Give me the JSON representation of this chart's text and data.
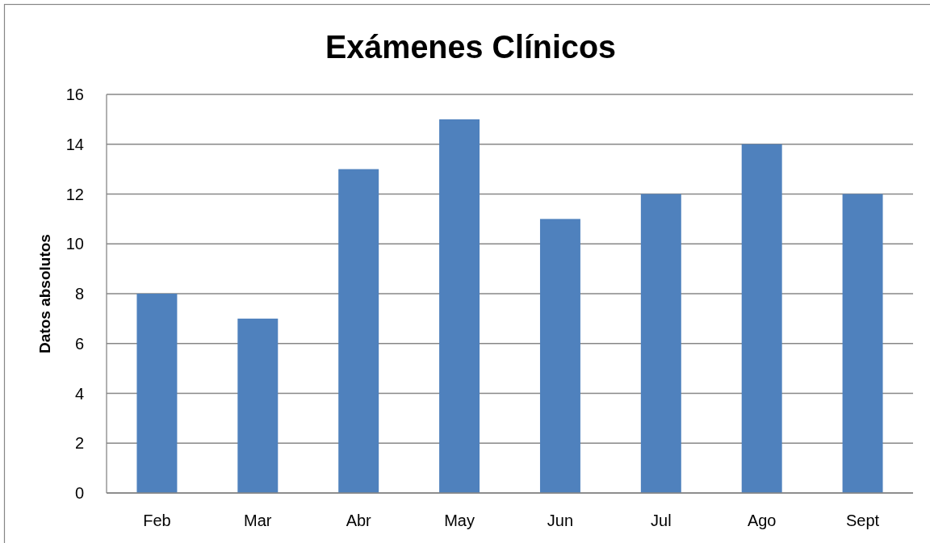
{
  "chart_data": {
    "type": "bar",
    "title": "Exámenes Clínicos",
    "ylabel": "Datos absolutos",
    "categories": [
      "Feb",
      "Mar",
      "Abr",
      "May",
      "Jun",
      "Jul",
      "Ago",
      "Sept"
    ],
    "values": [
      8,
      7,
      13,
      15,
      11,
      12,
      14,
      12
    ],
    "color": "#4f81bd",
    "ylim": [
      0,
      16
    ],
    "yticks": [
      0,
      2,
      4,
      6,
      8,
      10,
      12,
      14,
      16
    ],
    "grid": "y"
  }
}
